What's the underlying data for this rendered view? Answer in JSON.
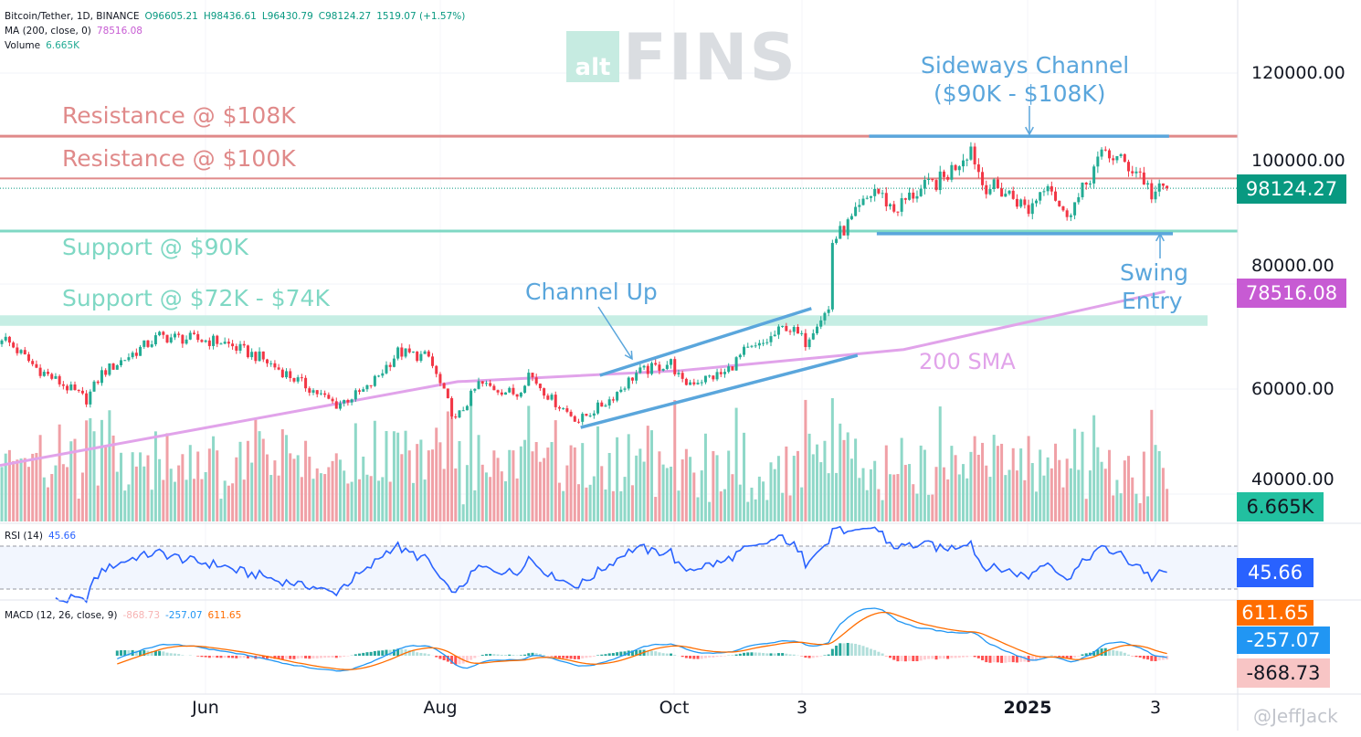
{
  "legend": {
    "symbol": "Bitcoin/Tether, 1D, BINANCE",
    "open": "O96605.21",
    "high": "H98436.61",
    "low": "L96430.79",
    "close": "C98124.27",
    "change": "1519.07 (+1.57%)",
    "ma_label": "MA (200, close, 0)",
    "ma_value": "78516.08",
    "volume_label": "Volume",
    "volume_value": "6.665K",
    "rsi_label": "RSI (14)",
    "rsi_value": "45.66",
    "macd_label": "MACD (12, 26, close, 9)",
    "macd_hist": "-868.73",
    "macd_line": "-257.07",
    "macd_signal": "611.65"
  },
  "watermark": {
    "logo_small": "alt",
    "logo_big": "FINS",
    "author": "@JeffJack"
  },
  "annotations": {
    "resistance_108": "Resistance @ $108K",
    "resistance_100": "Resistance @ $100K",
    "support_90": "Support @ $90K",
    "support_72": "Support @ $72K - $74K",
    "sideways_1": "Sideways Channel",
    "sideways_2": "($90K - $108K)",
    "channel_up": "Channel Up",
    "swing_1": "Swing",
    "swing_2": "Entry",
    "sma": "200 SMA"
  },
  "price_axis": {
    "labels": [
      "120000.00",
      "100000.00",
      "80000.00",
      "60000.00",
      "40000.00"
    ]
  },
  "tags": {
    "last_price": "98124.27",
    "ma": "78516.08",
    "volume": "6.665K",
    "rsi": "45.66",
    "macd_signal": "611.65",
    "macd_line": "-257.07",
    "macd_hist": "-868.73"
  },
  "time_axis": {
    "labels": [
      "Jun",
      "Aug",
      "Oct",
      "3",
      "2025",
      "3"
    ]
  },
  "colors": {
    "up": "#22ab94",
    "down": "#f23645",
    "ma": "#c75bd3",
    "sma_line": "#e1a3ea",
    "rsi": "#2962ff",
    "macd": "#2196f3",
    "signal": "#ff6d00",
    "resistance": "#e08a8a",
    "support": "#7fd8c4",
    "channel": "#5aa6dc",
    "last_price": "#089981"
  },
  "chart_data": {
    "type": "candlestick",
    "symbol": "BTCUSDT",
    "timeframe": "1D",
    "ylim": [
      40000,
      125000
    ],
    "close_path": [
      [
        "2024-04-09",
        70000
      ],
      [
        "2024-04-18",
        64000
      ],
      [
        "2024-05-01",
        58000
      ],
      [
        "2024-05-05",
        63000
      ],
      [
        "2024-05-20",
        70000
      ],
      [
        "2024-06-05",
        69000
      ],
      [
        "2024-06-15",
        66000
      ],
      [
        "2024-06-24",
        62000
      ],
      [
        "2024-07-05",
        57000
      ],
      [
        "2024-07-13",
        60000
      ],
      [
        "2024-07-21",
        67000
      ],
      [
        "2024-07-29",
        66000
      ],
      [
        "2024-08-05",
        54000
      ],
      [
        "2024-08-11",
        61000
      ],
      [
        "2024-08-21",
        59000
      ],
      [
        "2024-08-24",
        63000
      ],
      [
        "2024-08-30",
        58000
      ],
      [
        "2024-09-06",
        54000
      ],
      [
        "2024-09-14",
        58000
      ],
      [
        "2024-09-21",
        63000
      ],
      [
        "2024-09-30",
        65000
      ],
      [
        "2024-10-03",
        61000
      ],
      [
        "2024-10-09",
        62000
      ],
      [
        "2024-10-14",
        63000
      ],
      [
        "2024-10-19",
        67000
      ],
      [
        "2024-10-23",
        68000
      ],
      [
        "2024-10-30",
        72000
      ],
      [
        "2024-11-04",
        69000
      ],
      [
        "2024-11-07",
        73000
      ],
      [
        "2024-11-10",
        75000
      ],
      [
        "2024-11-11",
        88000
      ],
      [
        "2024-11-16",
        92000
      ],
      [
        "2024-11-22",
        98000
      ],
      [
        "2024-11-27",
        94000
      ],
      [
        "2024-12-02",
        97000
      ],
      [
        "2024-12-10",
        100000
      ],
      [
        "2024-12-17",
        106000
      ],
      [
        "2024-12-20",
        99000
      ],
      [
        "2024-12-27",
        97000
      ],
      [
        "2025-01-01",
        94000
      ],
      [
        "2025-01-06",
        100000
      ],
      [
        "2025-01-10",
        93000
      ],
      [
        "2025-01-14",
        96000
      ],
      [
        "2025-01-18",
        102000
      ],
      [
        "2025-01-21",
        105000
      ],
      [
        "2025-01-30",
        101000
      ],
      [
        "2025-02-02",
        97000
      ],
      [
        "2025-02-06",
        98124.27
      ]
    ],
    "sma200": [
      [
        "2024-04-09",
        45500
      ],
      [
        "2024-08-06",
        61400
      ],
      [
        "2024-10-03",
        63500
      ],
      [
        "2024-11-30",
        67500
      ],
      [
        "2025-02-06",
        78516.08
      ]
    ],
    "horizontal_levels": [
      {
        "label": "Resistance @ $108K",
        "price": 108000,
        "kind": "resistance"
      },
      {
        "label": "Resistance @ $100K",
        "price": 100000,
        "kind": "resistance"
      },
      {
        "label": "Support @ $90K",
        "price": 90000,
        "kind": "support"
      },
      {
        "label": "Support @ $72K - $74K",
        "price_range": [
          72000,
          74000
        ],
        "kind": "support"
      }
    ],
    "trendlines": [
      {
        "label": "Channel Up",
        "from": [
          "2024-09-07",
          52700
        ],
        "to": [
          "2024-11-18",
          66400
        ]
      },
      {
        "label": "Channel Up",
        "from": [
          "2024-09-12",
          62600
        ],
        "to": [
          "2024-11-06",
          75300
        ]
      },
      {
        "label": "Sideways Channel",
        "from": [
          "2024-11-21",
          108000
        ],
        "to": [
          "2025-02-07",
          108000
        ]
      },
      {
        "label": "Sideways Channel",
        "from": [
          "2024-11-23",
          89500
        ],
        "to": [
          "2025-02-08",
          89500
        ]
      }
    ],
    "rsi_levels": [
      70,
      30
    ],
    "last": {
      "close": 98124.27,
      "ma200": 78516.08,
      "volume": "6.665K",
      "rsi": 45.66,
      "macd": -257.07,
      "signal": 611.65,
      "hist": -868.73
    }
  }
}
